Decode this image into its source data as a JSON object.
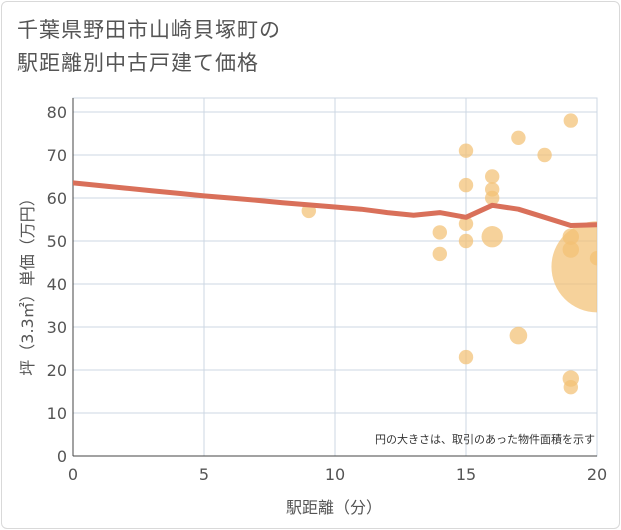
{
  "title_line1": "千葉県野田市山崎貝塚町の",
  "title_line2": "駅距離別中古戸建て価格",
  "chart_data": {
    "type": "scatter",
    "title": "千葉県野田市山崎貝塚町の駅距離別中古戸建て価格",
    "xlabel": "駅距離（分）",
    "ylabel": "坪（3.3㎡）単価（万円）",
    "xlim": [
      0,
      20
    ],
    "ylim": [
      0,
      80
    ],
    "xticks": [
      0,
      5,
      10,
      15,
      20
    ],
    "yticks": [
      0,
      10,
      20,
      30,
      40,
      50,
      60,
      70,
      80
    ],
    "grid": true,
    "note": "円の大きさは、取引のあった物件面積を示す",
    "colors": {
      "points": "#f2c174",
      "trend": "#d9705a",
      "grid": "#ccd7e3"
    },
    "points": [
      {
        "x": 9,
        "y": 57,
        "size": 1
      },
      {
        "x": 14,
        "y": 52,
        "size": 1
      },
      {
        "x": 14,
        "y": 47,
        "size": 1
      },
      {
        "x": 15,
        "y": 71,
        "size": 1
      },
      {
        "x": 15,
        "y": 63,
        "size": 1
      },
      {
        "x": 15,
        "y": 54,
        "size": 1
      },
      {
        "x": 15,
        "y": 50,
        "size": 1
      },
      {
        "x": 15,
        "y": 23,
        "size": 1
      },
      {
        "x": 16,
        "y": 65,
        "size": 1
      },
      {
        "x": 16,
        "y": 62,
        "size": 1
      },
      {
        "x": 16,
        "y": 60,
        "size": 1
      },
      {
        "x": 16,
        "y": 51,
        "size": 2.2
      },
      {
        "x": 17,
        "y": 74,
        "size": 1
      },
      {
        "x": 17,
        "y": 28,
        "size": 1.5
      },
      {
        "x": 18,
        "y": 70,
        "size": 1
      },
      {
        "x": 19,
        "y": 78,
        "size": 1
      },
      {
        "x": 19,
        "y": 51,
        "size": 1.3
      },
      {
        "x": 19,
        "y": 48,
        "size": 1.3
      },
      {
        "x": 19,
        "y": 18,
        "size": 1.3
      },
      {
        "x": 19,
        "y": 16,
        "size": 1
      },
      {
        "x": 20,
        "y": 46,
        "size": 1
      },
      {
        "x": 20,
        "y": 44,
        "size": 40
      }
    ],
    "trend": [
      {
        "x": 0,
        "y": 63.5
      },
      {
        "x": 1,
        "y": 62.9
      },
      {
        "x": 2,
        "y": 62.3
      },
      {
        "x": 3,
        "y": 61.7
      },
      {
        "x": 4,
        "y": 61.1
      },
      {
        "x": 5,
        "y": 60.5
      },
      {
        "x": 6,
        "y": 60.0
      },
      {
        "x": 7,
        "y": 59.5
      },
      {
        "x": 8,
        "y": 58.9
      },
      {
        "x": 9,
        "y": 58.4
      },
      {
        "x": 10,
        "y": 57.9
      },
      {
        "x": 11,
        "y": 57.4
      },
      {
        "x": 12,
        "y": 56.6
      },
      {
        "x": 13,
        "y": 56.0
      },
      {
        "x": 14,
        "y": 56.6
      },
      {
        "x": 15,
        "y": 55.5
      },
      {
        "x": 16,
        "y": 58.3
      },
      {
        "x": 17,
        "y": 57.4
      },
      {
        "x": 18,
        "y": 55.5
      },
      {
        "x": 19,
        "y": 53.6
      },
      {
        "x": 20,
        "y": 53.8
      }
    ]
  }
}
